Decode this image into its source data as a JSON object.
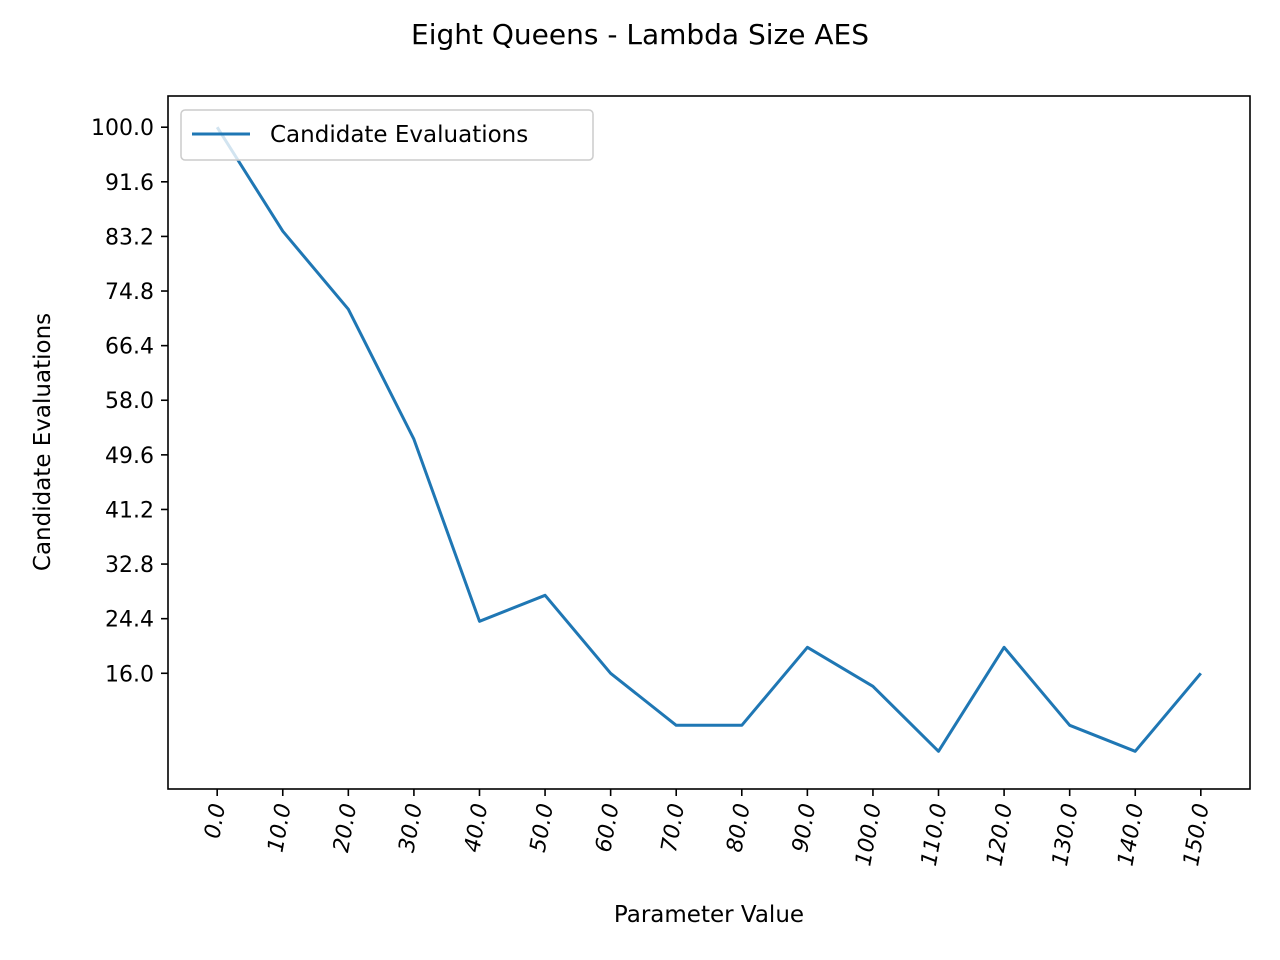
{
  "chart_data": {
    "type": "line",
    "title": "Eight Queens - Lambda Size AES",
    "xlabel": "Parameter Value",
    "ylabel": "Candidate Evaluations",
    "x": [
      0.0,
      10.0,
      20.0,
      30.0,
      40.0,
      50.0,
      60.0,
      70.0,
      80.0,
      90.0,
      100.0,
      110.0,
      120.0,
      130.0,
      140.0,
      150.0
    ],
    "x_tick_labels": [
      "0.0",
      "10.0",
      "20.0",
      "30.0",
      "40.0",
      "50.0",
      "60.0",
      "70.0",
      "80.0",
      "90.0",
      "100.0",
      "110.0",
      "120.0",
      "130.0",
      "140.0",
      "150.0"
    ],
    "y_ticks": [
      16.0,
      24.4,
      32.8,
      41.2,
      49.6,
      58.0,
      66.4,
      74.8,
      83.2,
      91.6,
      100.0
    ],
    "y_tick_labels": [
      "16.0",
      "24.4",
      "32.8",
      "41.2",
      "49.6",
      "58.0",
      "66.4",
      "74.8",
      "83.2",
      "91.6",
      "100.0"
    ],
    "xlim": [
      -7.5,
      157.5
    ],
    "ylim": [
      -1.8,
      104.8
    ],
    "grid": false,
    "legend_position": "upper left",
    "series": [
      {
        "name": "Candidate Evaluations",
        "color": "#1f77b4",
        "values": [
          100,
          84,
          72,
          52,
          24,
          28,
          16,
          8,
          8,
          20,
          14,
          4,
          20,
          8,
          4,
          16
        ]
      }
    ]
  }
}
